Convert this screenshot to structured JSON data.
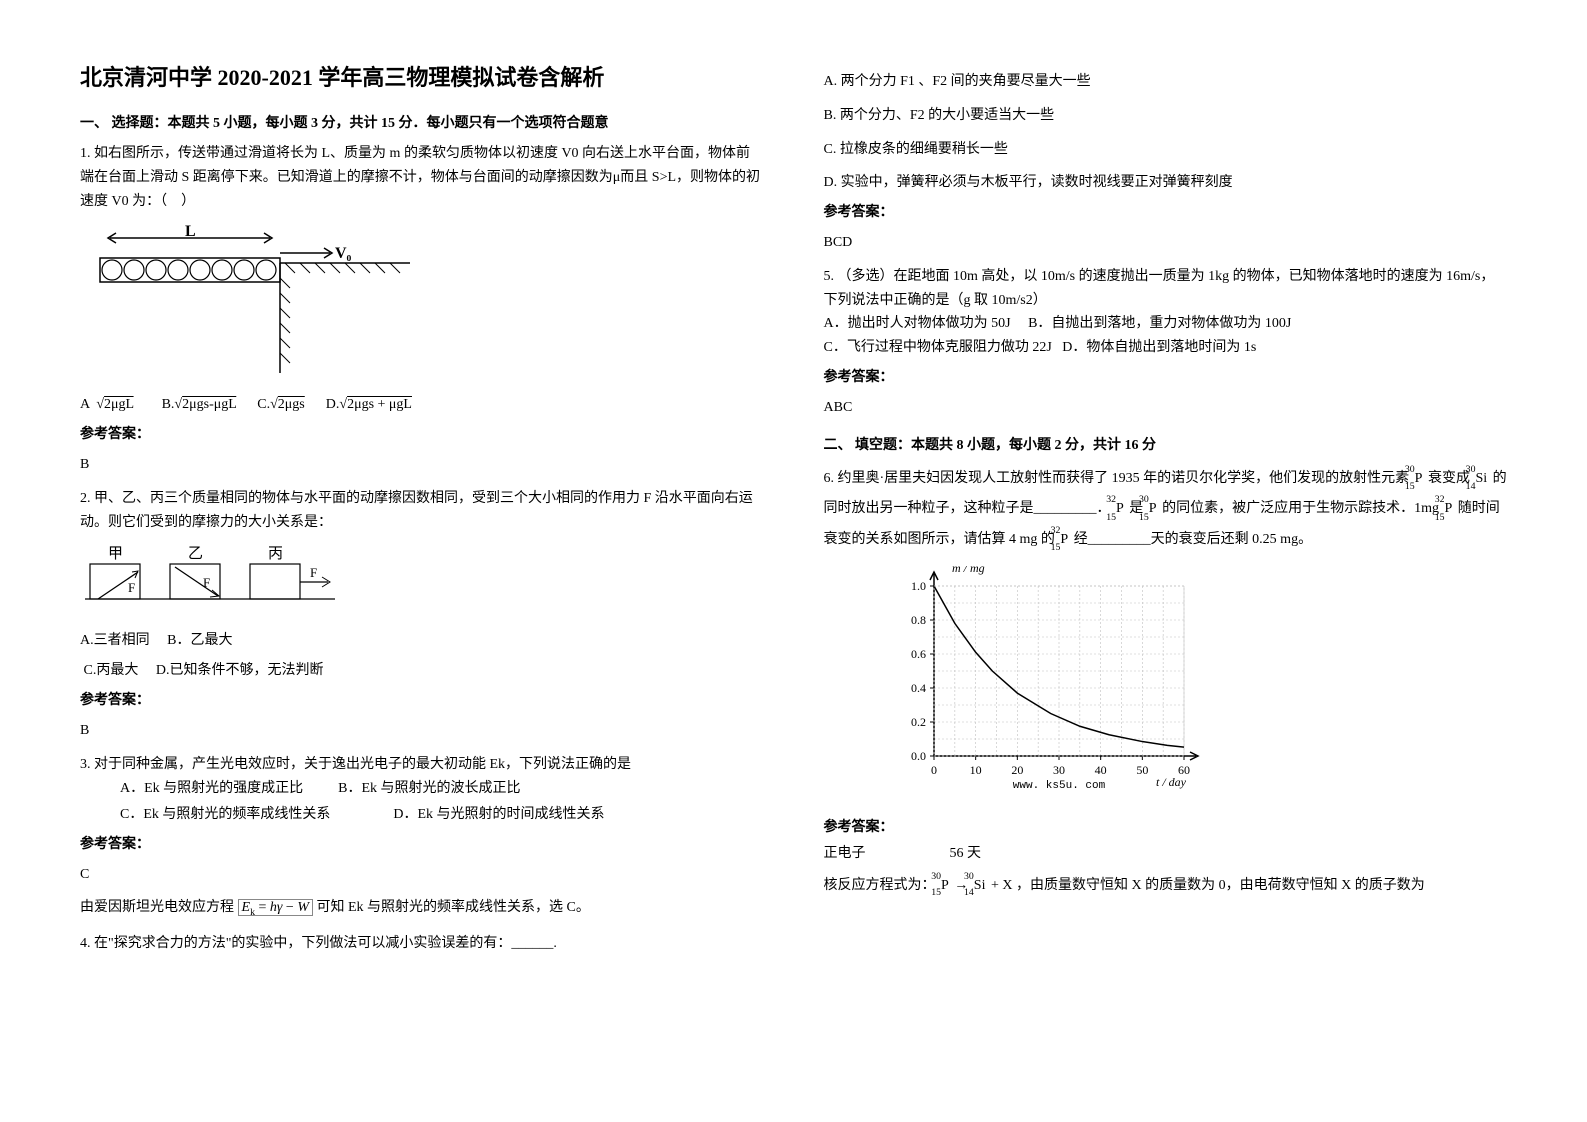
{
  "title": "北京清河中学 2020-2021 学年高三物理模拟试卷含解析",
  "section1_header": "一、 选择题：本题共 5 小题，每小题 3 分，共计 15 分．每小题只有一个选项符合题意",
  "q1": {
    "text": "1. 如右图所示，传送带通过滑道将长为 L、质量为 m 的柔软匀质物体以初速度 V0 向右送上水平台面，物体前端在台面上滑动 S 距离停下来。已知滑道上的摩擦不计，物体与台面间的动摩擦因数为μ而且 S>L，则物体的初速度 V0 为：（　）",
    "diagram": {
      "L_label": "L",
      "V0_label": "V₀",
      "roller_count": 8,
      "colors": {
        "line": "#000000",
        "bg": "#ffffff"
      }
    },
    "options": {
      "A": "A",
      "A_formula": "√(2μgL)",
      "B": "B.",
      "B_formula": "√(2μgs-μgL)",
      "C": "C.",
      "C_formula": "√(2μgs)",
      "D": "D.",
      "D_formula": "√(2μgs + μgL)"
    },
    "answer_label": "参考答案：",
    "answer": "B"
  },
  "q2": {
    "text": "2. 甲、乙、丙三个质量相同的物体与水平面的动摩擦因数相同，受到三个大小相同的作用力 F 沿水平面向右运动。则它们受到的摩擦力的大小关系是：",
    "labels": {
      "jia": "甲",
      "yi": "乙",
      "bing": "丙",
      "F": "F"
    },
    "options": {
      "A": "A.三者相同",
      "B": "B．乙最大",
      "C": "C.丙最大",
      "D": "D.已知条件不够，无法判断"
    },
    "answer_label": "参考答案：",
    "answer": "B"
  },
  "q3": {
    "text": "3. 对于同种金属，产生光电效应时，关于逸出光电子的最大初动能 Ek，下列说法正确的是",
    "options": {
      "A": "A．Ek 与照射光的强度成正比",
      "B": "B．Ek 与照射光的波长成正比",
      "C": "C．Ek 与照射光的频率成线性关系",
      "D": "D．Ek 与光照射的时间成线性关系"
    },
    "answer_label": "参考答案：",
    "answer": "C",
    "explanation_prefix": "由爱因斯坦光电效应方程",
    "explanation_formula": "Eₖ = hγ − W",
    "explanation_suffix": "可知 Ek 与照射光的频率成线性关系，选 C。"
  },
  "q4": {
    "text": "4. 在\"探究求合力的方法\"的实验中，下列做法可以减小实验误差的有：______.",
    "options": {
      "A": "A. 两个分力 F1 、F2 间的夹角要尽量大一些",
      "B": "B. 两个分力、F2 的大小要适当大一些",
      "C": "C. 拉橡皮条的细绳要稍长一些",
      "D": "D. 实验中，弹簧秤必须与木板平行，读数时视线要正对弹簧秤刻度"
    },
    "answer_label": "参考答案：",
    "answer": "BCD"
  },
  "q5": {
    "text": "5. （多选）在距地面 10m 高处，以 10m/s 的速度抛出一质量为 1kg 的物体，已知物体落地时的速度为 16m/s，下列说法中正确的是（g 取 10m/s2）",
    "options": {
      "A": "A．抛出时人对物体做功为 50J",
      "B": "B．自抛出到落地，重力对物体做功为 100J",
      "C": "C．飞行过程中物体克服阻力做功 22J",
      "D": "D．物体自抛出到落地时间为 1s"
    },
    "answer_label": "参考答案：",
    "answer": "ABC"
  },
  "section2_header": "二、 填空题：本题共 8 小题，每小题 2 分，共计 16 分",
  "q6": {
    "text_parts": {
      "p1": "6. 约里奥·居里夫妇因发现人工放射性而获得了 1935 年的诺贝尔化学奖，他们发现的放射性元素",
      "p2": "衰变成",
      "p3": "的同时放出另一种粒子，这种粒子是_________．",
      "p4": "是",
      "p5": "的同位素，被广泛应用于生物示踪技术．1mg",
      "p6": "随时间衰变的关系如图所示，请估算 4 mg 的",
      "p7": "经_________天的衰变后还剩 0.25 mg。"
    },
    "isotopes": {
      "P30": {
        "mass": "30",
        "atomic": "15",
        "symbol": "P"
      },
      "Si30": {
        "mass": "30",
        "atomic": "14",
        "symbol": "Si"
      },
      "P32": {
        "mass": "32",
        "atomic": "15",
        "symbol": "P"
      }
    },
    "chart": {
      "type": "line",
      "xlabel": "t / day",
      "ylabel": "m / mg",
      "x_ticks": [
        0,
        10,
        20,
        30,
        40,
        50,
        60
      ],
      "y_ticks": [
        0.0,
        0.2,
        0.4,
        0.6,
        0.8,
        1.0
      ],
      "xlim": [
        0,
        60
      ],
      "ylim": [
        0,
        1.0
      ],
      "data_x": [
        0,
        5,
        10,
        14,
        20,
        28,
        35,
        42,
        50,
        56,
        60
      ],
      "data_y": [
        1.0,
        0.78,
        0.61,
        0.5,
        0.37,
        0.25,
        0.175,
        0.125,
        0.085,
        0.0625,
        0.052
      ],
      "colors": {
        "axis": "#000000",
        "grid": "#bfbfbf",
        "grid_dash": "2,2",
        "curve": "#000000",
        "bg": "#ffffff"
      },
      "watermark": "www. ks5u. com",
      "axis_fontsize": 12,
      "curve_width": 1.5
    },
    "answer_label": "参考答案：",
    "answer_part1": "正电子",
    "answer_part2": "56 天",
    "explanation_prefix": "核反应方程式为：",
    "explanation_reaction_text": "₁₅³⁰P → ₁₄³⁰Si + X",
    "explanation_suffix": "，由质量数守恒知 X 的质量数为 0，由电荷数守恒知 X 的质子数为"
  }
}
